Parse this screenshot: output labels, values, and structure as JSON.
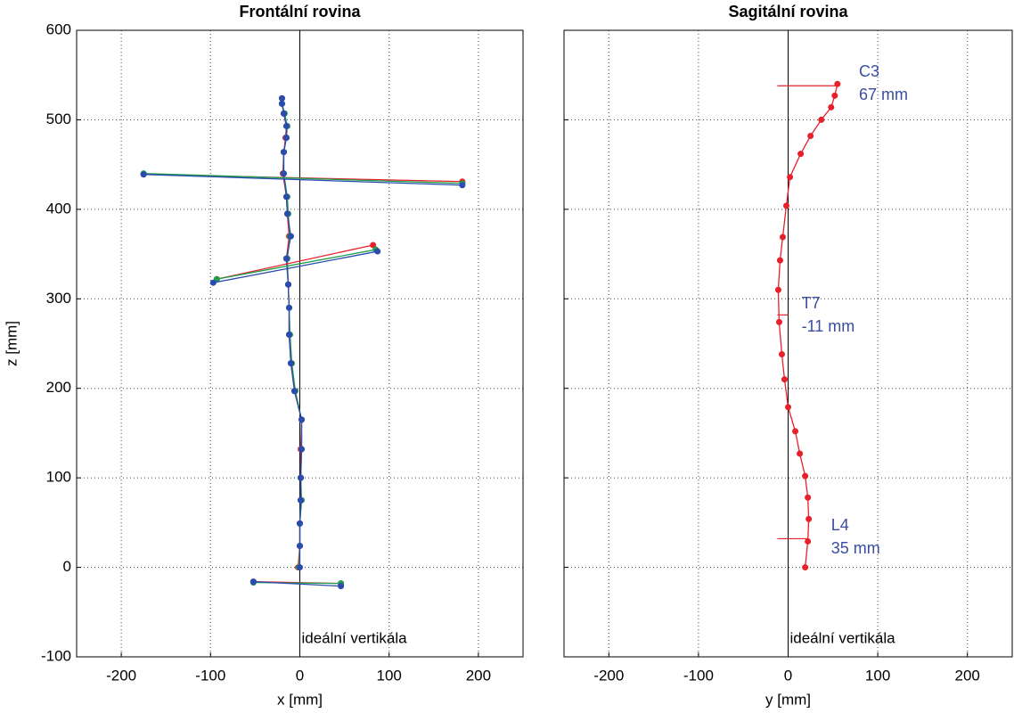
{
  "chart_data": [
    {
      "type": "line",
      "title": "Frontální rovina",
      "xlabel": "x [mm]",
      "ylabel": "z [mm]",
      "xlim": [
        -250,
        250
      ],
      "ylim": [
        -100,
        600
      ],
      "xticks": [
        -200,
        -100,
        0,
        100,
        200
      ],
      "yticks": [
        -100,
        0,
        100,
        200,
        300,
        400,
        500,
        600
      ],
      "ytick_labels": true,
      "grid": true,
      "vertical": {
        "x": 0,
        "label": "ideální vertikála",
        "label_x": 2,
        "label_y": -80
      },
      "series": [
        {
          "color": "#e8202a",
          "x": [
            -2,
            0,
            0,
            1,
            1,
            1,
            2,
            -6,
            -10,
            -12,
            -12,
            -13,
            -15,
            -12,
            -14,
            -15,
            -19,
            -18,
            -16,
            -15,
            -18,
            -20,
            -20
          ],
          "y": [
            0,
            24,
            49,
            75,
            100,
            132,
            165,
            197,
            228,
            260,
            290,
            316,
            345,
            370,
            395,
            414,
            440,
            464,
            480,
            493,
            507,
            518,
            524
          ]
        },
        {
          "color": "#1f9e4a",
          "x": [
            -1,
            0,
            0,
            2,
            1,
            2,
            2,
            -5,
            -9,
            -11,
            -12,
            -13,
            -14,
            -11,
            -13,
            -14,
            -18,
            -18,
            -15,
            -14,
            -17,
            -20,
            -20
          ],
          "y": [
            0,
            24,
            49,
            75,
            100,
            132,
            165,
            197,
            228,
            260,
            290,
            316,
            345,
            370,
            395,
            414,
            440,
            464,
            480,
            493,
            507,
            518,
            524
          ]
        },
        {
          "color": "#2a4bb0",
          "x": [
            0,
            0,
            0,
            1,
            1,
            2,
            2,
            -6,
            -10,
            -12,
            -12,
            -13,
            -15,
            -10,
            -14,
            -15,
            -18,
            -18,
            -15,
            -15,
            -18,
            -20,
            -20
          ],
          "y": [
            0,
            24,
            49,
            75,
            100,
            132,
            165,
            197,
            228,
            260,
            290,
            316,
            345,
            370,
            395,
            414,
            440,
            464,
            480,
            493,
            507,
            518,
            524
          ]
        },
        {
          "color": "#e8202a",
          "x": [
            -175,
            182
          ],
          "y": [
            439,
            431
          ]
        },
        {
          "color": "#1f9e4a",
          "x": [
            -175,
            182
          ],
          "y": [
            440,
            429
          ]
        },
        {
          "color": "#2a4bb0",
          "x": [
            -175,
            182
          ],
          "y": [
            439,
            427
          ]
        },
        {
          "color": "#e8202a",
          "x": [
            -93,
            82
          ],
          "y": [
            322,
            360
          ]
        },
        {
          "color": "#1f9e4a",
          "x": [
            -93,
            85
          ],
          "y": [
            322,
            355
          ]
        },
        {
          "color": "#2a4bb0",
          "x": [
            -97,
            87
          ],
          "y": [
            318,
            353
          ]
        },
        {
          "color": "#e8202a",
          "x": [
            -52,
            46
          ],
          "y": [
            -16,
            -18
          ]
        },
        {
          "color": "#1f9e4a",
          "x": [
            -52,
            46
          ],
          "y": [
            -17,
            -18
          ]
        },
        {
          "color": "#2a4bb0",
          "x": [
            -52,
            46
          ],
          "y": [
            -16,
            -21
          ]
        }
      ],
      "annotations": []
    },
    {
      "type": "line",
      "title": "Sagitální rovina",
      "xlabel": "y [mm]",
      "xlim": [
        -250,
        250
      ],
      "ylim": [
        -100,
        600
      ],
      "xticks": [
        -200,
        -100,
        0,
        100,
        200
      ],
      "yticks": [
        -100,
        0,
        100,
        200,
        300,
        400,
        500,
        600
      ],
      "ytick_labels": false,
      "grid": true,
      "vertical": {
        "x": 0,
        "label": "ideální vertikála",
        "label_x": 2,
        "label_y": -80
      },
      "series": [
        {
          "color": "#e8202a",
          "x": [
            19,
            22,
            23,
            22,
            19,
            13,
            8,
            0,
            -4,
            -7,
            -10,
            -11,
            -9,
            -6,
            -2,
            2,
            14,
            25,
            37,
            48,
            52,
            55
          ],
          "y": [
            0,
            29,
            54,
            78,
            102,
            127,
            152,
            179,
            210,
            238,
            274,
            310,
            343,
            369,
            404,
            436,
            462,
            482,
            500,
            514,
            527,
            540
          ]
        }
      ],
      "annotations": [
        {
          "lines": [
            "C3",
            "67 mm"
          ],
          "x": 79,
          "y": 553,
          "line_x": [
            -12,
            55
          ],
          "line_y": [
            538,
            538
          ]
        },
        {
          "lines": [
            "T7",
            "-11 mm"
          ],
          "x": 15,
          "y": 294,
          "line_x": [
            -12,
            0
          ],
          "line_y": [
            282,
            282
          ]
        },
        {
          "lines": [
            "L4",
            "35 mm"
          ],
          "x": 48,
          "y": 46,
          "line_x": [
            -12,
            22
          ],
          "line_y": [
            32,
            32
          ]
        }
      ]
    }
  ]
}
